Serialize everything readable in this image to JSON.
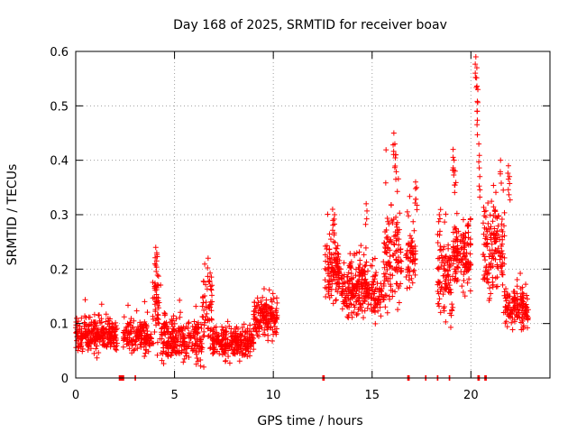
{
  "chart_data": {
    "type": "scatter",
    "title": "Day 168 of 2025, SRMTID for receiver boav",
    "xlabel": "GPS time / hours",
    "ylabel": "SRMTID / TECUs",
    "xlim": [
      0,
      24
    ],
    "ylim": [
      0,
      0.6
    ],
    "xticks": [
      0,
      5,
      10,
      15,
      20
    ],
    "xtick_labels": [
      "0",
      "5",
      "10",
      "15",
      "20"
    ],
    "yticks": [
      0,
      0.1,
      0.2,
      0.3,
      0.4,
      0.5,
      0.6
    ],
    "ytick_labels": [
      "0",
      "0.1",
      "0.2",
      "0.3",
      "0.4",
      "0.5",
      "0.6"
    ],
    "grid": true,
    "marker": "+",
    "color": "#ff0000",
    "series": [
      {
        "name": "SRMTID",
        "segments": [
          {
            "x_start": 0.0,
            "x_end": 2.1,
            "y_mean": 0.08,
            "spread": 0.02,
            "n": 260
          },
          {
            "x_start": 2.4,
            "x_end": 3.9,
            "y_mean": 0.075,
            "spread": 0.02,
            "n": 160
          },
          {
            "x_start": 3.9,
            "x_end": 4.3,
            "y_mean": 0.14,
            "spread": 0.05,
            "n": 50
          },
          {
            "x_start": 4.3,
            "x_end": 6.4,
            "y_mean": 0.07,
            "spread": 0.025,
            "n": 240
          },
          {
            "x_start": 6.4,
            "x_end": 6.9,
            "y_mean": 0.12,
            "spread": 0.05,
            "n": 60
          },
          {
            "x_start": 6.9,
            "x_end": 9.0,
            "y_mean": 0.065,
            "spread": 0.02,
            "n": 240
          },
          {
            "x_start": 9.0,
            "x_end": 10.2,
            "y_mean": 0.11,
            "spread": 0.025,
            "n": 160
          },
          {
            "x_start": 12.6,
            "x_end": 13.4,
            "y_mean": 0.2,
            "spread": 0.04,
            "n": 110
          },
          {
            "x_start": 13.4,
            "x_end": 15.6,
            "y_mean": 0.16,
            "spread": 0.035,
            "n": 280
          },
          {
            "x_start": 15.6,
            "x_end": 16.5,
            "y_mean": 0.22,
            "spread": 0.06,
            "n": 120
          },
          {
            "x_start": 16.7,
            "x_end": 17.2,
            "y_mean": 0.22,
            "spread": 0.04,
            "n": 60
          },
          {
            "x_start": 18.3,
            "x_end": 19.1,
            "y_mean": 0.18,
            "spread": 0.05,
            "n": 100
          },
          {
            "x_start": 19.1,
            "x_end": 20.0,
            "y_mean": 0.23,
            "spread": 0.045,
            "n": 130
          },
          {
            "x_start": 20.6,
            "x_end": 21.7,
            "y_mean": 0.24,
            "spread": 0.06,
            "n": 150
          },
          {
            "x_start": 21.7,
            "x_end": 22.9,
            "y_mean": 0.13,
            "spread": 0.025,
            "n": 140
          }
        ],
        "peaks": [
          {
            "x": 4.05,
            "y": 0.24
          },
          {
            "x": 4.1,
            "y": 0.23
          },
          {
            "x": 6.7,
            "y": 0.22
          },
          {
            "x": 13.0,
            "y": 0.31
          },
          {
            "x": 13.1,
            "y": 0.3
          },
          {
            "x": 14.7,
            "y": 0.32
          },
          {
            "x": 16.1,
            "y": 0.45
          },
          {
            "x": 16.15,
            "y": 0.43
          },
          {
            "x": 16.2,
            "y": 0.41
          },
          {
            "x": 17.2,
            "y": 0.36
          },
          {
            "x": 17.25,
            "y": 0.35
          },
          {
            "x": 18.4,
            "y": 0.3
          },
          {
            "x": 19.1,
            "y": 0.42
          },
          {
            "x": 19.15,
            "y": 0.4
          },
          {
            "x": 19.2,
            "y": 0.38
          },
          {
            "x": 20.25,
            "y": 0.59
          },
          {
            "x": 20.3,
            "y": 0.57
          },
          {
            "x": 20.35,
            "y": 0.53
          },
          {
            "x": 20.32,
            "y": 0.49
          },
          {
            "x": 20.4,
            "y": 0.43
          },
          {
            "x": 20.45,
            "y": 0.37
          },
          {
            "x": 21.5,
            "y": 0.4
          },
          {
            "x": 21.9,
            "y": 0.39
          },
          {
            "x": 21.95,
            "y": 0.37
          }
        ],
        "zero_points": [
          2.2,
          2.25,
          2.3,
          2.35,
          2.4,
          3.0,
          12.5,
          12.55,
          16.8,
          16.85,
          17.7,
          18.3,
          18.9,
          20.35,
          20.4,
          20.7,
          20.75
        ]
      }
    ]
  }
}
